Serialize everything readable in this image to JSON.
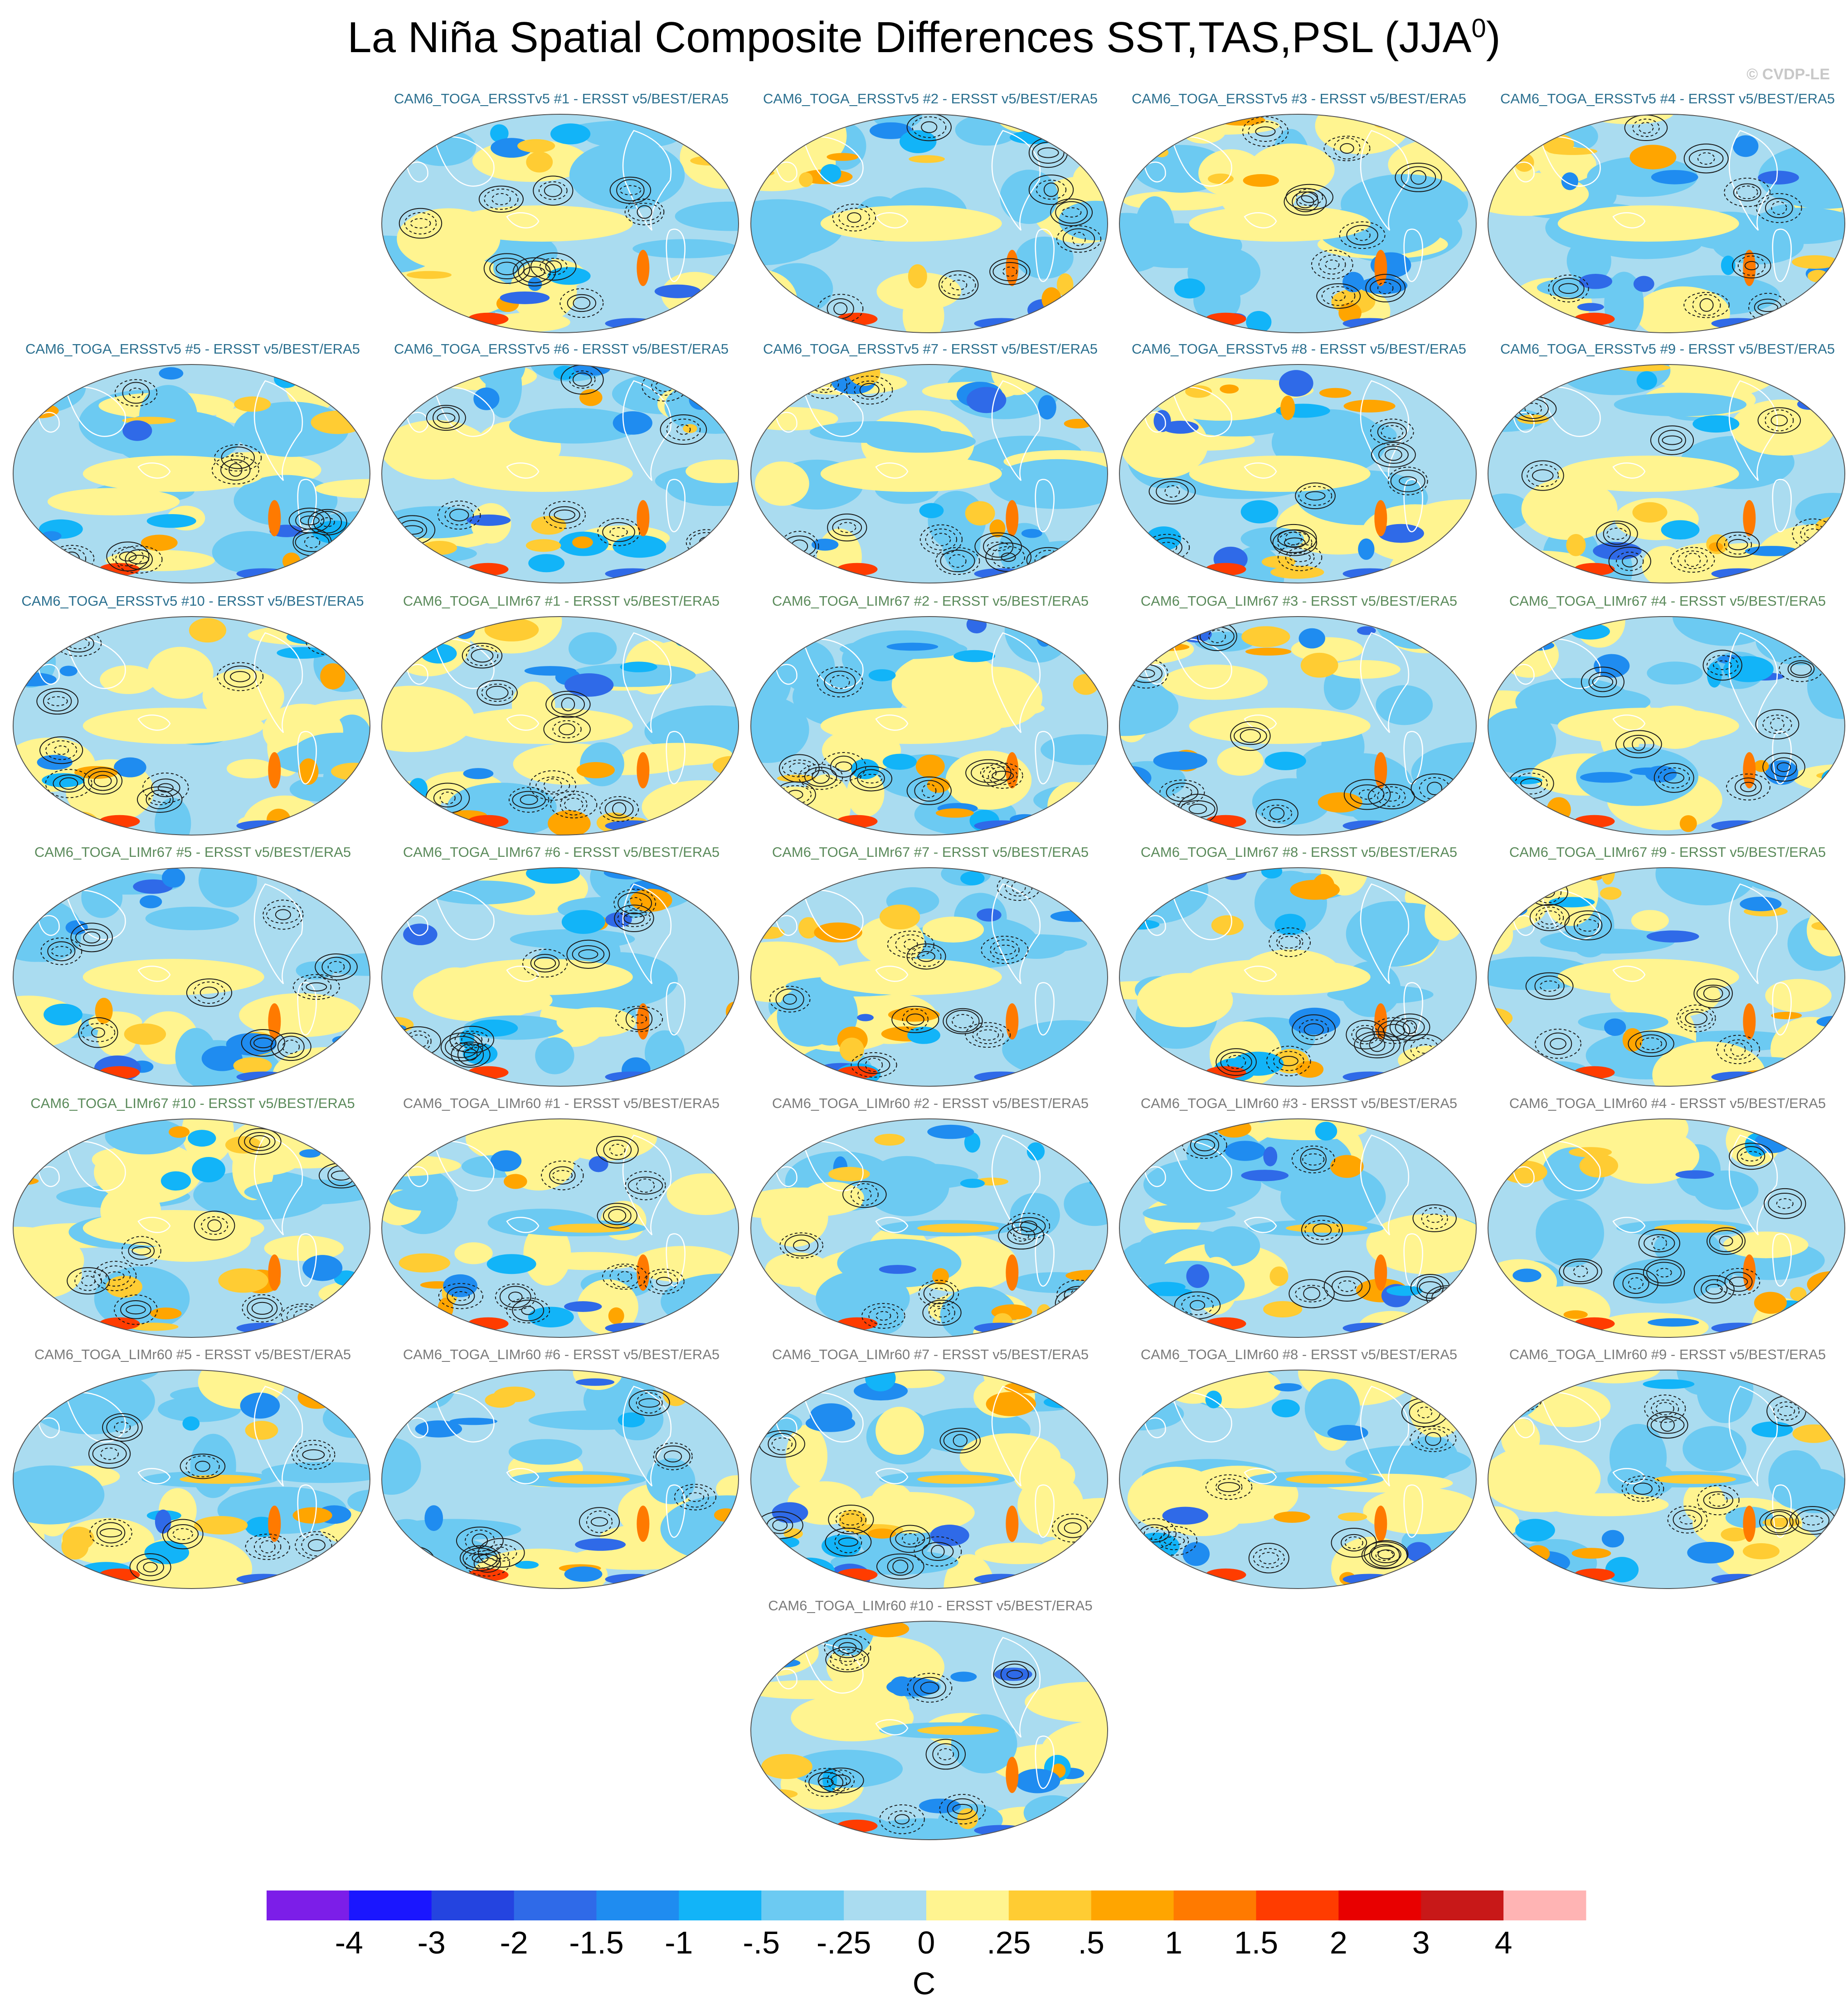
{
  "title": "La Niña Spatial Composite Differences SST,TAS,PSL (JJA",
  "title_sup": "0",
  "title_close": ")",
  "watermark": "© CVDP-LE",
  "chart_data": {
    "type": "heatmap",
    "description_units": "C",
    "panels": [
      {
        "label": "CAM6_TOGA_ERSSTv5 #1 - ERSST v5/BEST/ERA5",
        "group": "ERSSTv5"
      },
      {
        "label": "CAM6_TOGA_ERSSTv5 #2 - ERSST v5/BEST/ERA5",
        "group": "ERSSTv5"
      },
      {
        "label": "CAM6_TOGA_ERSSTv5 #3 - ERSST v5/BEST/ERA5",
        "group": "ERSSTv5"
      },
      {
        "label": "CAM6_TOGA_ERSSTv5 #4 - ERSST v5/BEST/ERA5",
        "group": "ERSSTv5"
      },
      {
        "label": "CAM6_TOGA_ERSSTv5 #5 - ERSST v5/BEST/ERA5",
        "group": "ERSSTv5"
      },
      {
        "label": "CAM6_TOGA_ERSSTv5 #6 - ERSST v5/BEST/ERA5",
        "group": "ERSSTv5"
      },
      {
        "label": "CAM6_TOGA_ERSSTv5 #7 - ERSST v5/BEST/ERA5",
        "group": "ERSSTv5"
      },
      {
        "label": "CAM6_TOGA_ERSSTv5 #8 - ERSST v5/BEST/ERA5",
        "group": "ERSSTv5"
      },
      {
        "label": "CAM6_TOGA_ERSSTv5 #9 - ERSST v5/BEST/ERA5",
        "group": "ERSSTv5"
      },
      {
        "label": "CAM6_TOGA_ERSSTv5 #10 - ERSST v5/BEST/ERA5",
        "group": "ERSSTv5"
      },
      {
        "label": "CAM6_TOGA_LIMr67 #1 - ERSST v5/BEST/ERA5",
        "group": "LIMr67"
      },
      {
        "label": "CAM6_TOGA_LIMr67 #2 - ERSST v5/BEST/ERA5",
        "group": "LIMr67"
      },
      {
        "label": "CAM6_TOGA_LIMr67 #3 - ERSST v5/BEST/ERA5",
        "group": "LIMr67"
      },
      {
        "label": "CAM6_TOGA_LIMr67 #4 - ERSST v5/BEST/ERA5",
        "group": "LIMr67"
      },
      {
        "label": "CAM6_TOGA_LIMr67 #5 - ERSST v5/BEST/ERA5",
        "group": "LIMr67"
      },
      {
        "label": "CAM6_TOGA_LIMr67 #6 - ERSST v5/BEST/ERA5",
        "group": "LIMr67"
      },
      {
        "label": "CAM6_TOGA_LIMr67 #7 - ERSST v5/BEST/ERA5",
        "group": "LIMr67"
      },
      {
        "label": "CAM6_TOGA_LIMr67 #8 - ERSST v5/BEST/ERA5",
        "group": "LIMr67"
      },
      {
        "label": "CAM6_TOGA_LIMr67 #9 - ERSST v5/BEST/ERA5",
        "group": "LIMr67"
      },
      {
        "label": "CAM6_TOGA_LIMr67 #10 - ERSST v5/BEST/ERA5",
        "group": "LIMr67"
      },
      {
        "label": "CAM6_TOGA_LIMr60 #1 - ERSST v5/BEST/ERA5",
        "group": "LIMr60"
      },
      {
        "label": "CAM6_TOGA_LIMr60 #2 - ERSST v5/BEST/ERA5",
        "group": "LIMr60"
      },
      {
        "label": "CAM6_TOGA_LIMr60 #3 - ERSST v5/BEST/ERA5",
        "group": "LIMr60"
      },
      {
        "label": "CAM6_TOGA_LIMr60 #4 - ERSST v5/BEST/ERA5",
        "group": "LIMr60"
      },
      {
        "label": "CAM6_TOGA_LIMr60 #5 - ERSST v5/BEST/ERA5",
        "group": "LIMr60"
      },
      {
        "label": "CAM6_TOGA_LIMr60 #6 - ERSST v5/BEST/ERA5",
        "group": "LIMr60"
      },
      {
        "label": "CAM6_TOGA_LIMr60 #7 - ERSST v5/BEST/ERA5",
        "group": "LIMr60"
      },
      {
        "label": "CAM6_TOGA_LIMr60 #8 - ERSST v5/BEST/ERA5",
        "group": "LIMr60"
      },
      {
        "label": "CAM6_TOGA_LIMr60 #9 - ERSST v5/BEST/ERA5",
        "group": "LIMr60"
      },
      {
        "label": "CAM6_TOGA_LIMr60 #10 - ERSST v5/BEST/ERA5",
        "group": "LIMr60"
      }
    ],
    "group_title_colors": {
      "ERSSTv5": "#2a6f8f",
      "LIMr67": "#5a8a5a",
      "LIMr60": "#7a7a7a"
    },
    "colorbar": {
      "labels": [
        "-4",
        "-3",
        "-2",
        "-1.5",
        "-1",
        "-.5",
        "-.25",
        "0",
        ".25",
        ".5",
        "1",
        "1.5",
        "2",
        "3",
        "4"
      ],
      "colors": [
        "#7c1ee8",
        "#1a16ff",
        "#2444e0",
        "#2f6ae8",
        "#1f8cf0",
        "#12b4f8",
        "#6ccaf2",
        "#aadcf0",
        "#fff490",
        "#ffcc33",
        "#ffa500",
        "#ff7a00",
        "#ff3c00",
        "#e80000",
        "#c81818",
        "#ffb4b4"
      ],
      "units": "C"
    }
  }
}
